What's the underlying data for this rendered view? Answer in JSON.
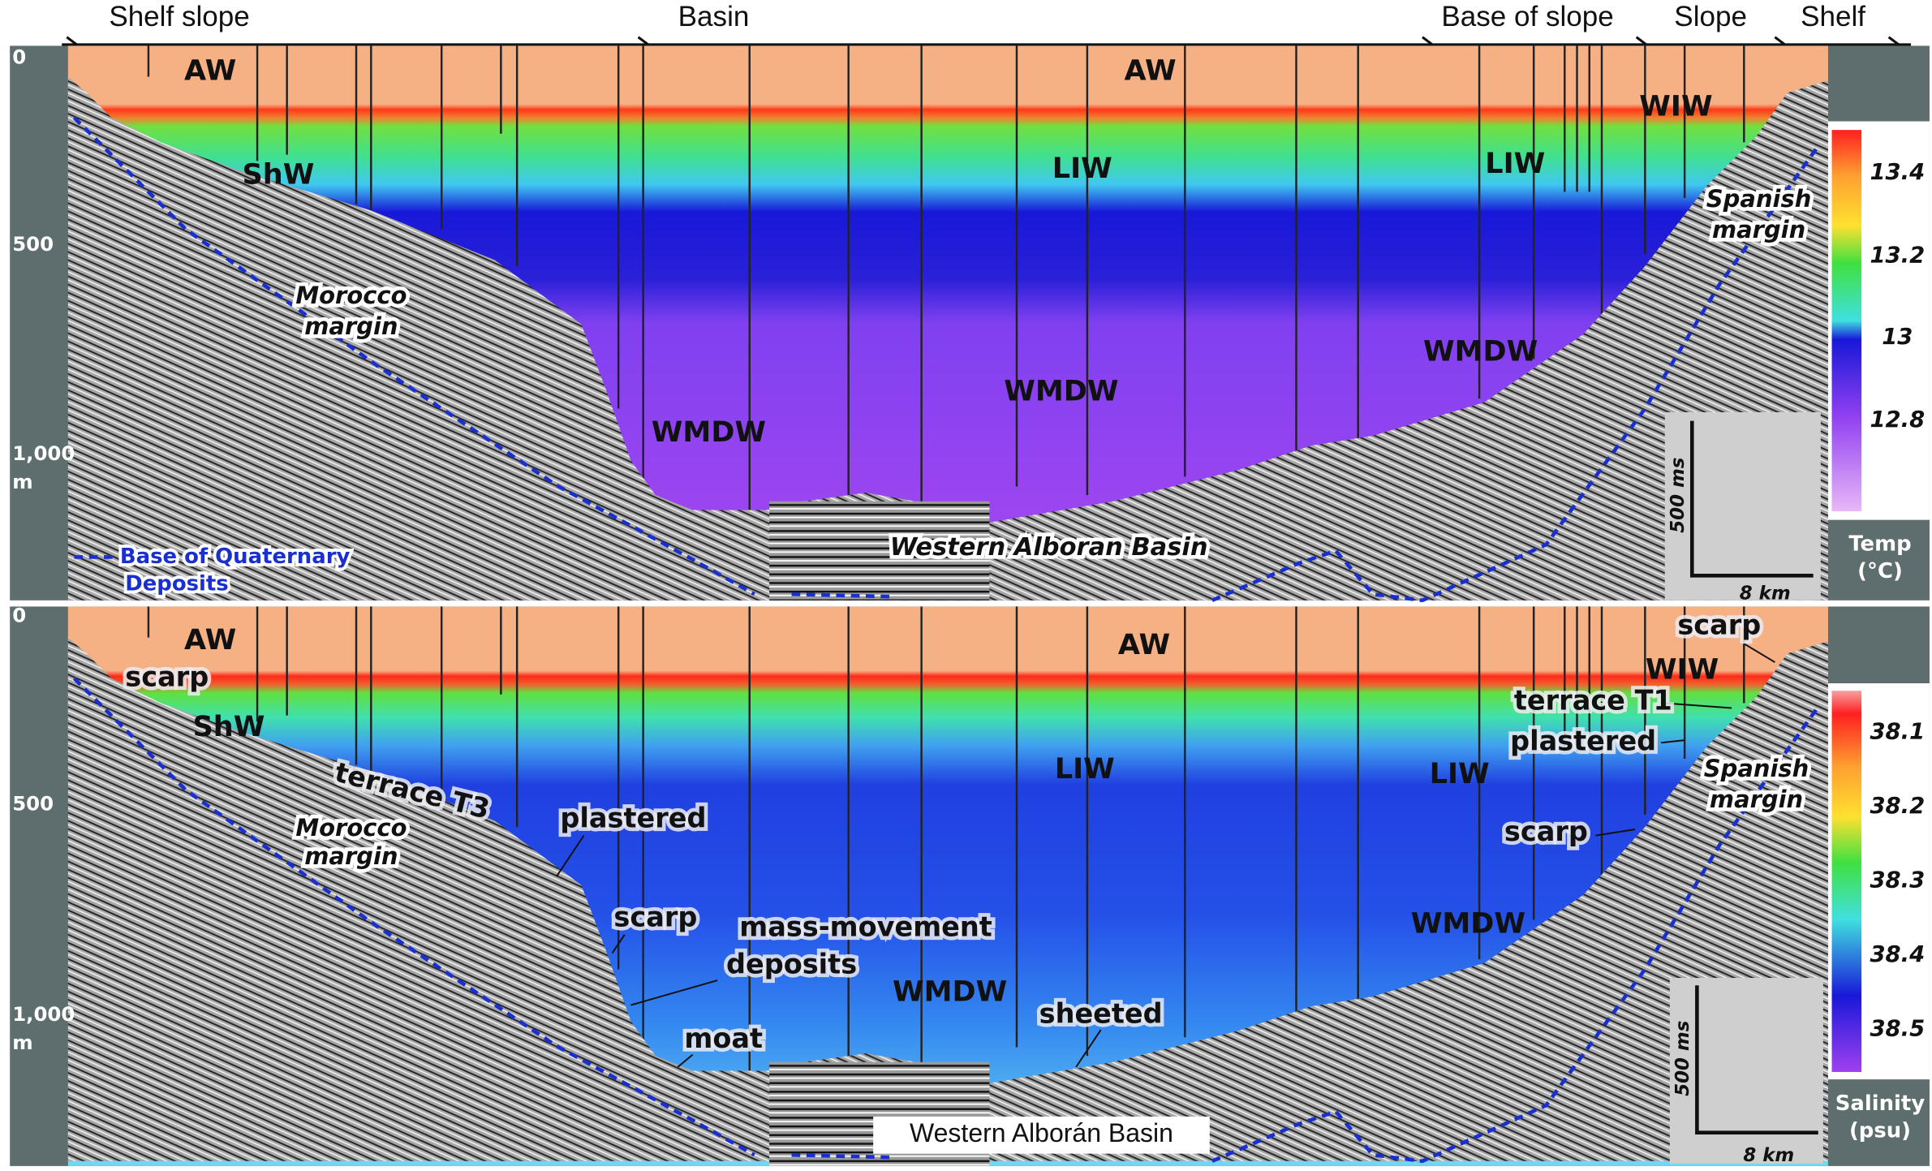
{
  "zones": [
    "Shelf slope",
    "Basin",
    "Base of slope",
    "Slope",
    "Shelf"
  ],
  "panels": [
    {
      "depth_labels": [
        "0",
        "500",
        "1,000",
        "m"
      ],
      "water_masses": [
        "AW",
        "AW",
        "ShW",
        "LIW",
        "LIW",
        "WIW",
        "WMDW",
        "WMDW",
        "WMDW"
      ],
      "margins": {
        "morocco": [
          "Morocco",
          "margin"
        ],
        "spain": [
          "Spanish",
          "margin"
        ]
      },
      "basin": "Western Alboran Basin",
      "legend": [
        "Base of Quaternary",
        "Deposits"
      ],
      "colorbar": {
        "title": [
          "Temp",
          "(°C)"
        ],
        "ticks": [
          "13.4",
          "13.2",
          "13",
          "12.8"
        ]
      },
      "scale": [
        "500 ms",
        "8 km"
      ]
    },
    {
      "depth_labels": [
        "0",
        "500",
        "1,000",
        "m"
      ],
      "water_masses": [
        "AW",
        "AW",
        "ShW",
        "LIW",
        "LIW",
        "WIW",
        "WMDW",
        "WMDW"
      ],
      "features": [
        "scarp",
        "scarp",
        "terrace T1",
        "plastered",
        "scarp",
        "terrace T3",
        "plastered",
        "scarp",
        "mass-movement",
        "deposits",
        "moat",
        "sheeted"
      ],
      "margins": {
        "morocco": [
          "Morocco",
          "margin"
        ],
        "spain": [
          "Spanish",
          "margin"
        ]
      },
      "basin": "Western Alborán Basin",
      "colorbar": {
        "title": [
          "Salinity",
          "(psu)"
        ],
        "ticks": [
          "38.1",
          "38.2",
          "38.3",
          "38.4",
          "38.5"
        ]
      },
      "scale": [
        "500 ms",
        "8 km"
      ]
    }
  ]
}
